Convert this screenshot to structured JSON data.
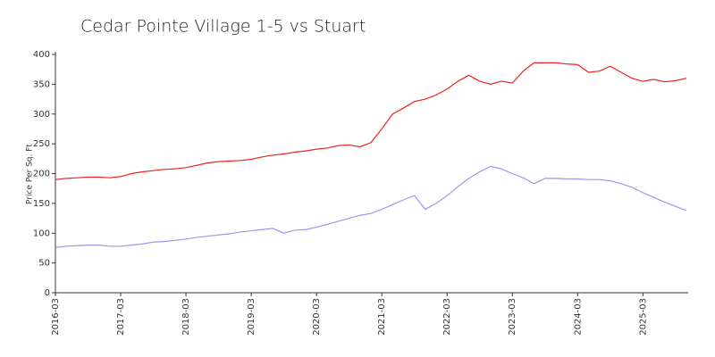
{
  "chart_data": {
    "type": "line",
    "title": "Cedar Pointe Village 1-5 vs Stuart",
    "ylabel": "Price Per Sq. Ft",
    "x": [
      "2016-03",
      "2016-05",
      "2016-07",
      "2016-09",
      "2016-11",
      "2017-01",
      "2017-03",
      "2017-05",
      "2017-07",
      "2017-09",
      "2017-11",
      "2018-01",
      "2018-03",
      "2018-05",
      "2018-07",
      "2018-09",
      "2018-11",
      "2019-01",
      "2019-03",
      "2019-05",
      "2019-07",
      "2019-09",
      "2019-11",
      "2020-01",
      "2020-03",
      "2020-05",
      "2020-07",
      "2020-09",
      "2020-11",
      "2021-01",
      "2021-03",
      "2021-05",
      "2021-07",
      "2021-09",
      "2021-11",
      "2022-01",
      "2022-03",
      "2022-05",
      "2022-07",
      "2022-09",
      "2022-11",
      "2023-01",
      "2023-03",
      "2023-05",
      "2023-07",
      "2023-09",
      "2023-11",
      "2024-01",
      "2024-03",
      "2024-05",
      "2024-07",
      "2024-09",
      "2024-11",
      "2025-01",
      "2025-03",
      "2025-05",
      "2025-07",
      "2025-09",
      "2025-11"
    ],
    "series": [
      {
        "color": "#ee2222",
        "values": [
          190,
          192,
          193,
          194,
          194,
          193,
          195,
          200,
          203,
          205,
          207,
          208,
          210,
          214,
          218,
          220,
          221,
          222,
          224,
          228,
          231,
          233,
          236,
          238,
          241,
          243,
          247,
          248,
          245,
          252,
          275,
          300,
          310,
          321,
          325,
          332,
          342,
          355,
          365,
          355,
          350,
          355,
          352,
          372,
          386,
          386,
          386,
          384,
          383,
          370,
          372,
          380,
          370,
          360,
          355,
          358,
          354,
          356,
          360
        ]
      },
      {
        "color": "#9999ee",
        "values": [
          76,
          78,
          79,
          80,
          80,
          78,
          78,
          80,
          82,
          85,
          86,
          88,
          90,
          93,
          95,
          97,
          99,
          102,
          104,
          106,
          108,
          100,
          105,
          106,
          110,
          115,
          120,
          125,
          130,
          133,
          140,
          148,
          156,
          163,
          140,
          150,
          163,
          178,
          192,
          203,
          212,
          208,
          200,
          193,
          183,
          192,
          192,
          191,
          191,
          190,
          190,
          188,
          183,
          177,
          168,
          160,
          152,
          145,
          138
        ]
      }
    ],
    "xticks": [
      "2016-03",
      "2017-03",
      "2018-03",
      "2019-03",
      "2020-03",
      "2021-03",
      "2022-03",
      "2023-03",
      "2024-03",
      "2025-03"
    ],
    "ylim": [
      0,
      400
    ],
    "yticks": [
      0,
      50,
      100,
      150,
      200,
      250,
      300,
      350,
      400
    ]
  }
}
